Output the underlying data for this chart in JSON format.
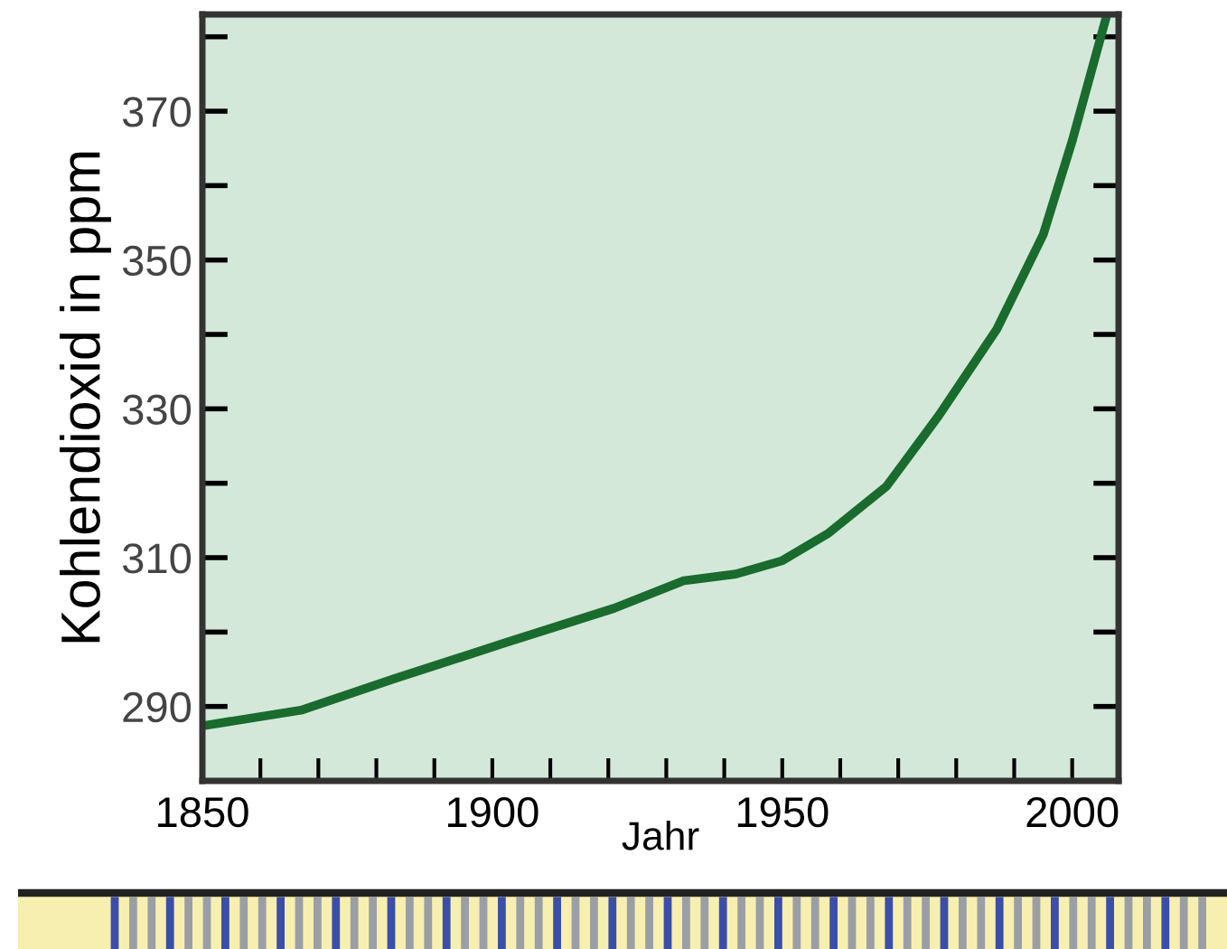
{
  "chart_data": {
    "type": "line",
    "xlabel": "Jahr",
    "ylabel": "Kohlendioxid in ppm",
    "x": [
      1850,
      1867,
      1883,
      1902,
      1921,
      1933,
      1942,
      1950,
      1958,
      1968,
      1977,
      1987,
      1995,
      2000,
      2006
    ],
    "series": [
      {
        "color": "#1a6b2e",
        "values": [
          287.4,
          289.5,
          293.7,
          298.5,
          303.2,
          306.9,
          307.8,
          309.6,
          313.3,
          319.6,
          329.1,
          340.7,
          353.4,
          366,
          383
        ]
      }
    ],
    "xlim": [
      1850,
      2008
    ],
    "ylim": [
      280,
      383
    ],
    "xticks": [
      1850,
      {
        "value": 1860,
        "label": null
      },
      {
        "value": 1870,
        "label": null
      },
      {
        "value": 1880,
        "label": null
      },
      {
        "value": 1890,
        "label": null
      },
      1900,
      {
        "value": 1910,
        "label": null
      },
      {
        "value": 1920,
        "label": null
      },
      {
        "value": 1930,
        "label": null
      },
      {
        "value": 1940,
        "label": null
      },
      1950,
      {
        "value": 1960,
        "label": null
      },
      {
        "value": 1970,
        "label": null
      },
      {
        "value": 1980,
        "label": null
      },
      {
        "value": 1990,
        "label": null
      },
      2000
    ],
    "yticks": [
      290,
      {
        "value": 300,
        "label": null
      },
      310,
      {
        "value": 320,
        "label": null
      },
      330,
      {
        "value": 340,
        "label": null
      },
      350,
      {
        "value": 360,
        "label": null
      },
      370,
      {
        "value": 380,
        "label": null
      }
    ],
    "grid": false,
    "legend": false,
    "marker": "none",
    "line_style": "solid"
  }
}
